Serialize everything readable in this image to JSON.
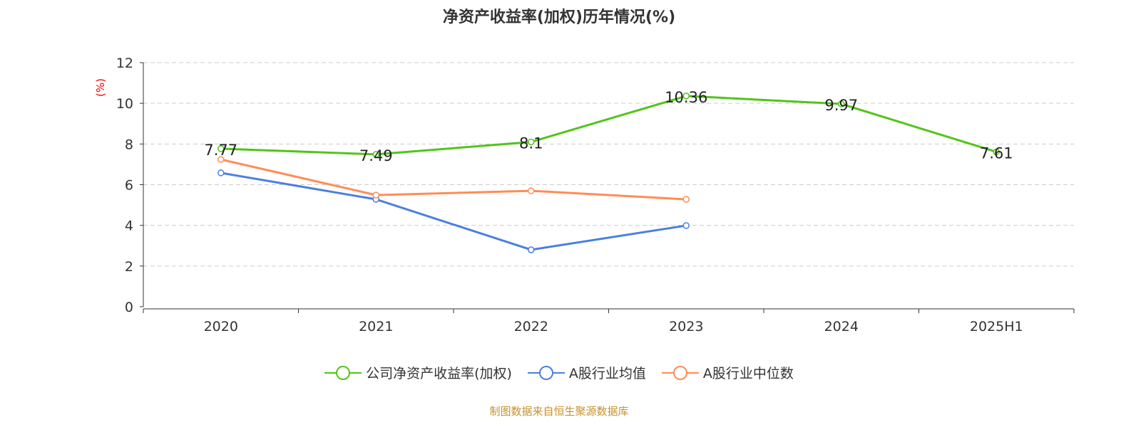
{
  "chart_data": {
    "type": "line",
    "title": "净资产收益率(加权)历年情况(%)",
    "ylabel": "(%)",
    "categories": [
      "2020",
      "2021",
      "2022",
      "2023",
      "2024",
      "2025H1"
    ],
    "ylim": [
      0,
      12
    ],
    "yticks": [
      0,
      2,
      4,
      6,
      8,
      10,
      12
    ],
    "grid": true,
    "legend_position": "bottom",
    "series": [
      {
        "name": "公司净资产收益率(加权)",
        "color": "#52c41a",
        "values": [
          7.77,
          7.49,
          8.1,
          10.36,
          9.97,
          7.61
        ],
        "labels": [
          "7.77",
          "7.49",
          "8.1",
          "10.36",
          "9.97",
          "7.61"
        ]
      },
      {
        "name": "A股行业均值",
        "color": "#4a7fe0",
        "values": [
          6.58,
          5.28,
          2.8,
          3.99,
          null,
          null
        ]
      },
      {
        "name": "A股行业中位数",
        "color": "#ff8c55",
        "values": [
          7.24,
          5.49,
          5.7,
          5.28,
          null,
          null
        ]
      }
    ]
  },
  "source": "制图数据来自恒生聚源数据库"
}
